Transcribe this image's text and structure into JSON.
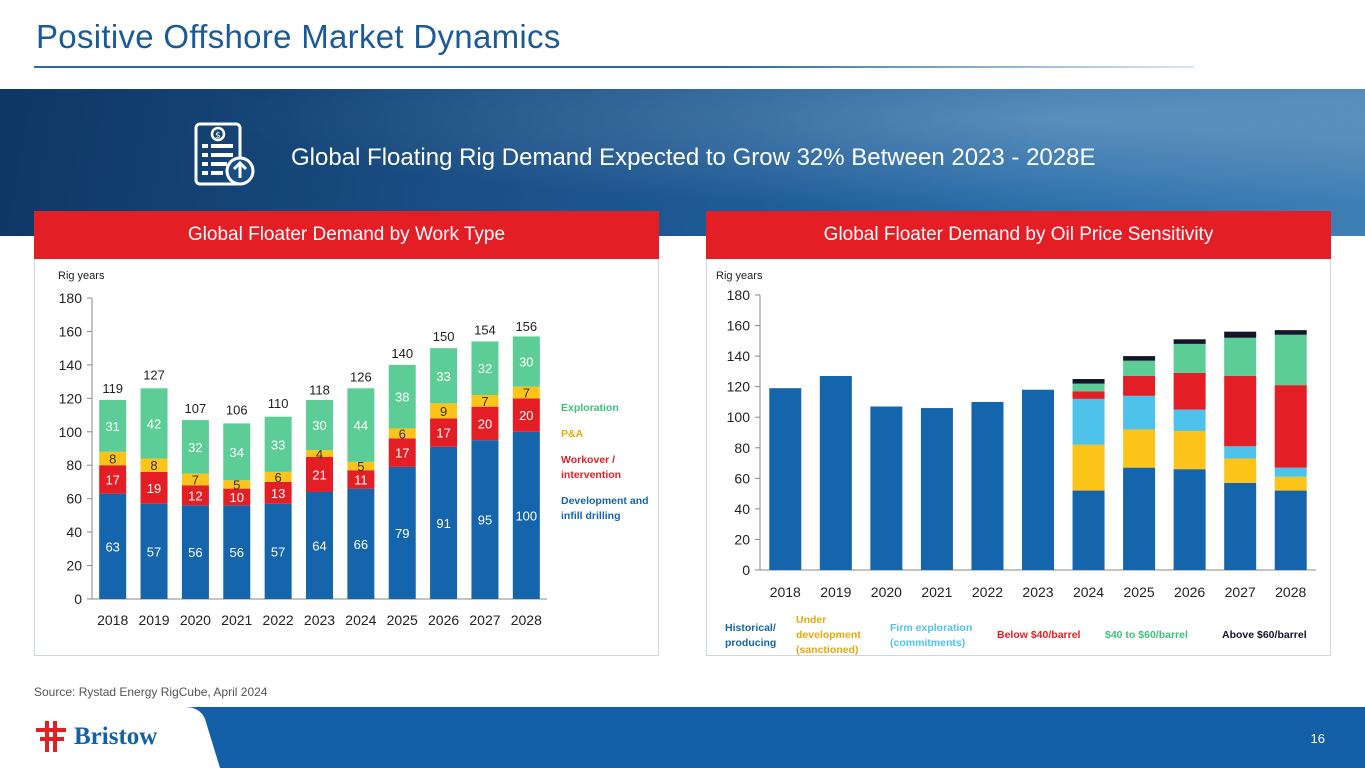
{
  "page": {
    "title": "Positive Offshore Market Dynamics",
    "banner": "Global Floating Rig Demand Expected to Grow 32% Between 2023 - 2028E",
    "source": "Source: Rystad Energy RigCube, April 2024",
    "page_number": "16",
    "logo": "Bristow",
    "colors": {
      "brand_blue": "#1460a8",
      "accent_red": "#e31e25",
      "title_blue": "#1a5a96"
    }
  },
  "chart_data": [
    {
      "type": "bar",
      "stacked": true,
      "title": "Global Floater Demand by Work Type",
      "ylabel": "Rig years",
      "xlabel": "",
      "ylim": [
        0,
        180
      ],
      "yticks": [
        0,
        20,
        40,
        60,
        80,
        100,
        120,
        140,
        160,
        180
      ],
      "categories": [
        "2018",
        "2019",
        "2020",
        "2021",
        "2022",
        "2023",
        "2024",
        "2025",
        "2026",
        "2027",
        "2028"
      ],
      "totals": [
        119,
        127,
        107,
        106,
        110,
        118,
        126,
        140,
        150,
        154,
        156
      ],
      "series": [
        {
          "name": "Development and infill drilling",
          "color": "#1565ad",
          "values": [
            63,
            57,
            56,
            56,
            57,
            64,
            66,
            79,
            91,
            95,
            100
          ]
        },
        {
          "name": "Workover / intervention",
          "color": "#e31e25",
          "values": [
            17,
            19,
            12,
            10,
            13,
            21,
            11,
            17,
            17,
            20,
            20
          ]
        },
        {
          "name": "P&A",
          "color": "#fcc419",
          "values": [
            8,
            8,
            7,
            5,
            6,
            4,
            5,
            6,
            9,
            7,
            7
          ]
        },
        {
          "name": "Exploration",
          "color": "#5ccd96",
          "values": [
            31,
            42,
            32,
            34,
            33,
            30,
            44,
            38,
            33,
            32,
            30
          ]
        }
      ],
      "legend_order": [
        3,
        2,
        1,
        0
      ],
      "legend_labels": [
        "Exploration",
        "P&A",
        "Workover / intervention",
        "Development and infill drilling"
      ]
    },
    {
      "type": "bar",
      "stacked": true,
      "title": "Global Floater Demand by Oil Price Sensitivity",
      "ylabel": "Rig years",
      "xlabel": "",
      "ylim": [
        0,
        180
      ],
      "yticks": [
        0,
        20,
        40,
        60,
        80,
        100,
        120,
        140,
        160,
        180
      ],
      "categories": [
        "2018",
        "2019",
        "2020",
        "2021",
        "2022",
        "2023",
        "2024",
        "2025",
        "2026",
        "2027",
        "2028"
      ],
      "series": [
        {
          "name": "Historical/ producing",
          "color": "#1565ad",
          "values": [
            119,
            127,
            107,
            106,
            110,
            118,
            52,
            67,
            66,
            57,
            52
          ]
        },
        {
          "name": "Under development (sanctioned)",
          "color": "#fcc419",
          "values": [
            0,
            0,
            0,
            0,
            0,
            0,
            30,
            25,
            25,
            16,
            9
          ]
        },
        {
          "name": "Firm exploration (commitments)",
          "color": "#4dc3eb",
          "values": [
            0,
            0,
            0,
            0,
            0,
            0,
            30,
            22,
            14,
            8,
            6
          ]
        },
        {
          "name": "Below $40/barrel",
          "color": "#e31e25",
          "values": [
            0,
            0,
            0,
            0,
            0,
            0,
            5,
            13,
            24,
            46,
            54
          ]
        },
        {
          "name": "$40 to $60/barrel",
          "color": "#5ccd96",
          "values": [
            0,
            0,
            0,
            0,
            0,
            0,
            5,
            10,
            19,
            25,
            33
          ]
        },
        {
          "name": "Above $60/barrel",
          "color": "#14142b",
          "values": [
            0,
            0,
            0,
            0,
            0,
            0,
            3,
            3,
            3,
            4,
            3
          ]
        }
      ],
      "legend_labels": [
        "Historical/ producing",
        "Under development (sanctioned)",
        "Firm exploration (commitments)",
        "Below $40/barrel",
        "$40 to $60/barrel",
        "Above $60/barrel"
      ],
      "legend_colors": [
        "#1565ad",
        "#e8a80c",
        "#4dc3eb",
        "#e31e25",
        "#3fc07c",
        "#14142b"
      ]
    }
  ]
}
